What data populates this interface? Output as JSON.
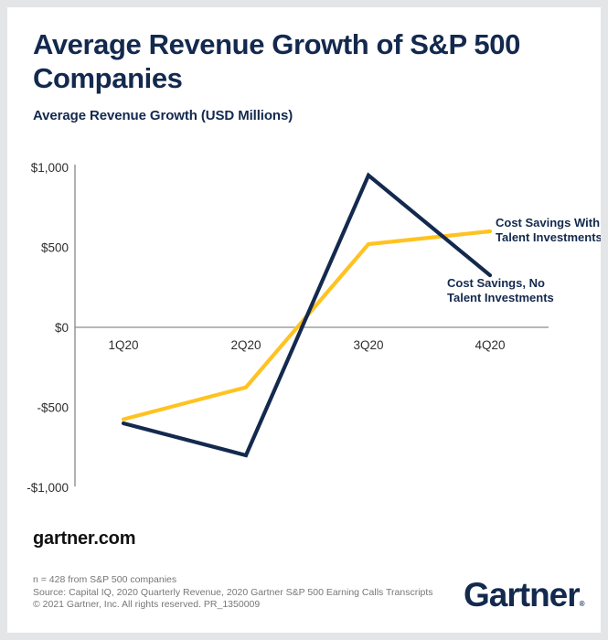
{
  "card": {
    "title": "Average Revenue Growth of S&P 500 Companies",
    "subtitle": "Average Revenue Growth (USD Millions)"
  },
  "chart_data": {
    "type": "line",
    "title": "Average Revenue Growth of S&P 500 Companies",
    "ylabel": "Average Revenue Growth (USD Millions)",
    "xlabel": "",
    "categories": [
      "1Q20",
      "2Q20",
      "3Q20",
      "4Q20"
    ],
    "series": [
      {
        "name": "Cost Savings With Talent Investments",
        "color": "#ffc220",
        "values": [
          -575,
          -375,
          520,
          600
        ],
        "annotation_lines": [
          "Cost Savings With",
          "Talent Investments"
        ]
      },
      {
        "name": "Cost Savings, No Talent Investments",
        "color": "#14294e",
        "values": [
          -600,
          -800,
          950,
          325
        ],
        "annotation_lines": [
          "Cost Savings, No",
          "Talent Investments"
        ]
      }
    ],
    "y_ticks": [
      {
        "value": 1000,
        "label": "$1,000"
      },
      {
        "value": 500,
        "label": "$500"
      },
      {
        "value": 0,
        "label": "$0"
      },
      {
        "value": -500,
        "label": "-$500"
      },
      {
        "value": -1000,
        "label": "-$1,000"
      }
    ],
    "ylim": [
      -1000,
      1000
    ],
    "grid": false,
    "legend_position": "inline annotations at right ends of lines"
  },
  "footer": {
    "site": "gartner.com",
    "note_n": "n = 428 from S&P 500 companies",
    "note_source": "Source: Capital IQ, 2020 Quarterly Revenue, 2020 Gartner S&P 500 Earning Calls Transcripts",
    "note_copyright": "© 2021 Gartner, Inc. All rights reserved. PR_1350009",
    "logo": "Gartner",
    "logo_mark": "®"
  },
  "colors": {
    "navy": "#13294e",
    "gold": "#ffc220",
    "axis_line": "#b0b0b0",
    "zero_line": "#8c8c8c",
    "tick_text": "#2e2e2e",
    "annotation_text": "#13294e",
    "frame": "#e4e5e6",
    "card_bg": "#ffffff"
  }
}
